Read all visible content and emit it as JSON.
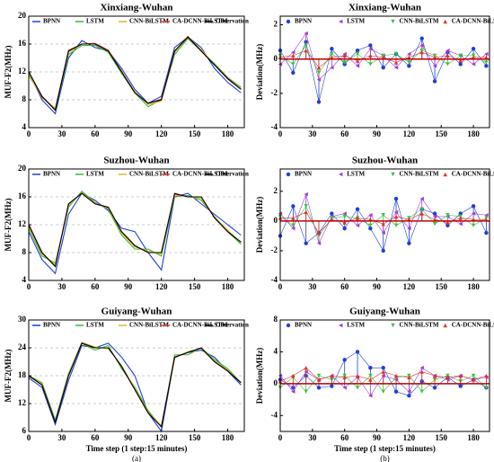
{
  "chart_data": [
    {
      "type": "line",
      "title": "Xinxiang-Wuhan",
      "ylabel": "MUF-F2(MHz)",
      "xlim": [
        0,
        195
      ],
      "xticks": [
        0,
        30,
        60,
        90,
        120,
        150,
        180
      ],
      "ylim": [
        4,
        20
      ],
      "yticks": [
        4,
        8,
        12,
        16,
        20
      ],
      "grid": true,
      "x": [
        0,
        12,
        24,
        36,
        48,
        60,
        72,
        84,
        96,
        108,
        120,
        132,
        144,
        156,
        168,
        180,
        192
      ],
      "series": [
        {
          "name": "BPNN",
          "color": "#1f3fd8",
          "values": [
            12,
            8,
            6,
            14,
            16.5,
            15.5,
            15,
            12.5,
            9.5,
            7.5,
            8.5,
            15.5,
            17,
            15.5,
            12.5,
            10.5,
            9
          ]
        },
        {
          "name": "LSTM",
          "color": "#3cb83c",
          "values": [
            11.5,
            8.5,
            6.5,
            14.5,
            15.8,
            15.8,
            14.8,
            11.8,
            9,
            7,
            8,
            14.5,
            16.8,
            15,
            13.2,
            11.2,
            9.8
          ]
        },
        {
          "name": "CNN-BiLSTM",
          "color": "#d4c020",
          "values": [
            11.8,
            8.3,
            6.8,
            14.8,
            16,
            16,
            15,
            12,
            9.2,
            7.3,
            7.8,
            14.8,
            17,
            15.2,
            13,
            11,
            9.6
          ]
        },
        {
          "name": "CA-DCNN-BiLSTM",
          "color": "#e03030",
          "values": [
            12,
            8.4,
            6.6,
            15.1,
            16,
            16.1,
            15.1,
            12.1,
            9,
            7.5,
            8.1,
            15,
            17.1,
            15,
            13,
            11.1,
            9.5
          ]
        },
        {
          "name": "Observation",
          "color": "#000000",
          "values": [
            12,
            8.5,
            6.5,
            15,
            16,
            16,
            15,
            12,
            9,
            7.5,
            8,
            15,
            17,
            15,
            13,
            11,
            9.5
          ]
        }
      ]
    },
    {
      "type": "line",
      "title": "Suzhou-Wuhan",
      "ylabel": "MUF-F2(MHz)",
      "xlim": [
        0,
        195
      ],
      "xticks": [
        0,
        30,
        60,
        90,
        120,
        150,
        180
      ],
      "ylim": [
        4,
        20
      ],
      "yticks": [
        4,
        8,
        12,
        16,
        20
      ],
      "grid": true,
      "x": [
        0,
        12,
        24,
        36,
        48,
        60,
        72,
        84,
        96,
        108,
        120,
        132,
        144,
        156,
        168,
        180,
        192
      ],
      "series": [
        {
          "name": "BPNN",
          "color": "#1f3fd8",
          "values": [
            11,
            7,
            5,
            13.5,
            16.5,
            15.5,
            14,
            11.5,
            11,
            8,
            5.5,
            16,
            16.5,
            15,
            13.5,
            12,
            10.5
          ]
        },
        {
          "name": "LSTM",
          "color": "#3cb83c",
          "values": [
            11.5,
            7.5,
            6.5,
            14.5,
            16.8,
            15.2,
            14.2,
            10.5,
            8.5,
            8.5,
            7.5,
            16,
            16.2,
            15.5,
            13.2,
            11,
            9.2
          ]
        },
        {
          "name": "CNN-BiLSTM",
          "color": "#d4c020",
          "values": [
            11.8,
            7.8,
            6.2,
            14.8,
            16.6,
            15.1,
            14.4,
            10.8,
            8.8,
            8.2,
            7.8,
            16.3,
            16,
            15.8,
            13.1,
            11.2,
            9.4
          ]
        },
        {
          "name": "CA-DCNN-BiLSTM",
          "color": "#e03030",
          "values": [
            12,
            8,
            6,
            15,
            16.5,
            15,
            14.5,
            11,
            9,
            8,
            8,
            16.4,
            16,
            16,
            13,
            11,
            9.5
          ]
        },
        {
          "name": "Observation",
          "color": "#000000",
          "values": [
            12,
            8,
            6,
            15,
            16.5,
            15,
            14.5,
            11,
            9,
            8,
            8,
            16.5,
            16,
            16,
            13,
            11,
            9.5
          ]
        }
      ]
    },
    {
      "type": "line",
      "title": "Guiyang-Wuhan",
      "ylabel": "MUF-F2(MHz)",
      "xlabel": "Time step (1 step:15 minutes)",
      "caption": "(a)",
      "xlim": [
        0,
        195
      ],
      "xticks": [
        0,
        30,
        60,
        90,
        120,
        150,
        180
      ],
      "ylim": [
        6,
        30
      ],
      "yticks": [
        6,
        12,
        18,
        24,
        30
      ],
      "grid": true,
      "x": [
        0,
        12,
        24,
        36,
        48,
        60,
        72,
        84,
        96,
        108,
        120,
        132,
        144,
        156,
        168,
        180,
        192
      ],
      "series": [
        {
          "name": "BPNN",
          "color": "#1f3fd8",
          "values": [
            17.5,
            15.5,
            7.5,
            17,
            24.5,
            24,
            25,
            22,
            18,
            10,
            6,
            22,
            23,
            23.5,
            22,
            19,
            16
          ]
        },
        {
          "name": "LSTM",
          "color": "#3cb83c",
          "values": [
            18,
            16.5,
            8.5,
            18.5,
            25,
            23.5,
            24.5,
            19.5,
            15.5,
            10.5,
            7,
            22.5,
            22.5,
            24,
            21.5,
            19.5,
            16.5
          ]
        },
        {
          "name": "CNN-BiLSTM",
          "color": "#d4c020",
          "values": [
            17.8,
            16.2,
            8.2,
            18.2,
            25.2,
            24.2,
            23.8,
            20.2,
            15.2,
            10.2,
            7.2,
            21.8,
            23.2,
            23.8,
            21.2,
            19.2,
            16.4
          ]
        },
        {
          "name": "CA-DCNN-BiLSTM",
          "color": "#e03030",
          "values": [
            18,
            16,
            8,
            18,
            25,
            24,
            24,
            20,
            15,
            10,
            7,
            22,
            23,
            24,
            21,
            19,
            16.5
          ]
        },
        {
          "name": "Observation",
          "color": "#000000",
          "values": [
            18,
            16,
            8,
            18,
            25,
            24,
            24,
            20,
            15,
            10,
            7,
            22,
            23,
            24,
            21,
            19,
            16.5
          ]
        }
      ]
    },
    {
      "type": "stem",
      "title": "Xinxiang-Wuhan",
      "ylabel": "Deviation(MHz)",
      "xlim": [
        0,
        195
      ],
      "xticks": [
        0,
        30,
        60,
        90,
        120,
        150,
        180
      ],
      "ylim": [
        -4,
        2.5
      ],
      "yticks": [
        -4,
        -2,
        0,
        2
      ],
      "grid": false,
      "x": [
        0,
        12,
        24,
        36,
        48,
        60,
        72,
        84,
        96,
        108,
        120,
        132,
        144,
        156,
        168,
        180,
        192
      ],
      "series": [
        {
          "name": "BPNN",
          "color": "#1f3fd8",
          "values": [
            0.5,
            -0.8,
            1,
            -2.5,
            0.6,
            -0.3,
            0.5,
            0.8,
            -0.5,
            0.3,
            -0.4,
            1.2,
            -1.3,
            0.4,
            -0.3,
            0.6,
            -0.4
          ]
        },
        {
          "name": "LSTM",
          "color": "#a040d0",
          "values": [
            -0.3,
            0.4,
            1.5,
            -1.2,
            -0.5,
            0.3,
            -0.4,
            0.6,
            0.2,
            -0.5,
            0.3,
            0.8,
            -0.4,
            0.5,
            0.2,
            -0.3,
            0.3
          ]
        },
        {
          "name": "CNN-BiLSTM",
          "color": "#40c040",
          "values": [
            0.2,
            -0.3,
            0.8,
            -0.8,
            0.3,
            -0.2,
            0.3,
            -0.3,
            0.2,
            0.3,
            -0.2,
            0.5,
            0.2,
            -0.3,
            0.2,
            0.2,
            -0.2
          ]
        },
        {
          "name": "CA-DCNN-BiLSTM",
          "color": "#e03030",
          "values": [
            0.1,
            0.2,
            0.5,
            -0.5,
            0.1,
            0.2,
            -0.1,
            0.2,
            0.1,
            -0.2,
            0.1,
            0.4,
            0.1,
            0.2,
            -0.1,
            0.1,
            0.1
          ]
        }
      ]
    },
    {
      "type": "stem",
      "title": "Suzhou-Wuhan",
      "ylabel": "Deviation(MHz)",
      "xlim": [
        0,
        195
      ],
      "xticks": [
        0,
        30,
        60,
        90,
        120,
        150,
        180
      ],
      "ylim": [
        -4,
        3.5
      ],
      "yticks": [
        -4,
        -2,
        0,
        2
      ],
      "grid": false,
      "x": [
        0,
        12,
        24,
        36,
        48,
        60,
        72,
        84,
        96,
        108,
        120,
        132,
        144,
        156,
        168,
        180,
        192
      ],
      "series": [
        {
          "name": "BPNN",
          "color": "#1f3fd8",
          "values": [
            -1,
            1,
            -1.5,
            -0.8,
            0.5,
            -0.5,
            0.8,
            -0.5,
            -2,
            1.5,
            -1.5,
            0.8,
            0.5,
            -0.3,
            0.5,
            1,
            -0.8
          ]
        },
        {
          "name": "LSTM",
          "color": "#a040d0",
          "values": [
            0.5,
            -0.5,
            1.8,
            -1.5,
            0.3,
            0.5,
            -0.3,
            0.4,
            -0.8,
            0.6,
            -0.5,
            1.5,
            0.3,
            0.3,
            -0.2,
            0.5,
            0.4
          ]
        },
        {
          "name": "CNN-BiLSTM",
          "color": "#40c040",
          "values": [
            0.3,
            -0.3,
            1,
            -1,
            0.2,
            0.3,
            0.2,
            -0.3,
            0.4,
            -0.3,
            0.2,
            0.8,
            -0.2,
            0.4,
            0.3,
            -0.3,
            0.2
          ]
        },
        {
          "name": "CA-DCNN-BiLSTM",
          "color": "#e03030",
          "values": [
            0.2,
            0.2,
            0.6,
            -0.8,
            0.1,
            -0.1,
            0.2,
            0.1,
            -0.2,
            0.3,
            0.1,
            0.5,
            0.1,
            -0.1,
            0.2,
            0.1,
            0.1
          ]
        }
      ]
    },
    {
      "type": "stem",
      "title": "Guiyang-Wuhan",
      "ylabel": "Deviation(MHz)",
      "xlabel": "Time step (1 step:15 minutes)",
      "caption": "(b)",
      "xlim": [
        0,
        195
      ],
      "xticks": [
        0,
        30,
        60,
        90,
        120,
        150,
        180
      ],
      "ylim": [
        -6,
        8
      ],
      "yticks": [
        -4,
        0,
        4,
        8
      ],
      "grid": false,
      "x": [
        0,
        12,
        24,
        36,
        48,
        60,
        72,
        84,
        96,
        108,
        120,
        132,
        144,
        156,
        168,
        180,
        192
      ],
      "series": [
        {
          "name": "BPNN",
          "color": "#1f3fd8",
          "values": [
            0.5,
            -0.5,
            1,
            -0.5,
            -0.3,
            3,
            4,
            2,
            2,
            -1,
            -1.5,
            0.3,
            -0.5,
            0.8,
            -0.3,
            0.5,
            -0.5
          ]
        },
        {
          "name": "LSTM",
          "color": "#a040d0",
          "values": [
            1,
            -1,
            1.5,
            0.5,
            1,
            -0.5,
            0.8,
            -1.5,
            1,
            0.5,
            -1,
            2,
            1,
            0.5,
            1,
            0.5,
            0.8
          ]
        },
        {
          "name": "CNN-BiLSTM",
          "color": "#40c040",
          "values": [
            -0.5,
            0.8,
            -1,
            1,
            0.5,
            1,
            -0.5,
            1,
            -1,
            0.8,
            1,
            -1,
            0.5,
            1,
            0.3,
            1,
            -0.5
          ]
        },
        {
          "name": "CA-DCNN-BiLSTM",
          "color": "#e03030",
          "values": [
            0.3,
            1,
            2,
            0.5,
            1,
            0.8,
            1,
            0.5,
            1.5,
            1,
            0.8,
            1.5,
            1,
            0.8,
            1,
            0.5,
            1
          ]
        }
      ]
    }
  ]
}
